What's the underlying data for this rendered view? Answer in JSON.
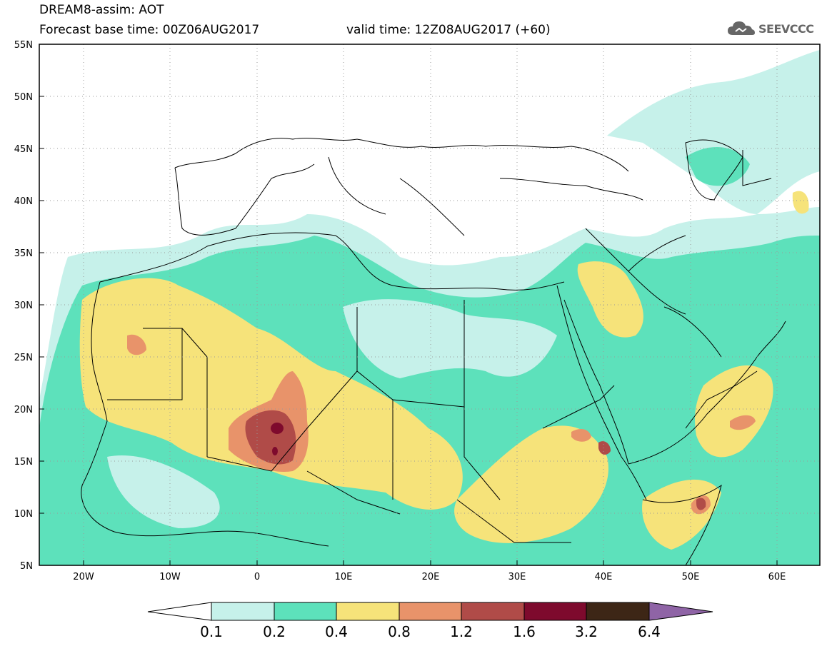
{
  "header": {
    "title_line1": "DREAM8-assim: AOT",
    "base_time": "Forecast base time: 00Z06AUG2017",
    "valid_time": "valid time: 12Z08AUG2017 (+60)"
  },
  "logo": {
    "text": "SEEVCCC",
    "icon": "cloud-icon"
  },
  "map": {
    "lat_labels": [
      "55N",
      "50N",
      "45N",
      "40N",
      "35N",
      "30N",
      "25N",
      "20N",
      "15N",
      "10N",
      "5N"
    ],
    "lon_labels": [
      "20W",
      "10W",
      "0",
      "10E",
      "20E",
      "30E",
      "40E",
      "50E",
      "60E"
    ],
    "lat_range": [
      5,
      55
    ],
    "lon_range": [
      -25,
      65
    ],
    "grid": "dotted"
  },
  "colorbar": {
    "labels": [
      "0.1",
      "0.2",
      "0.4",
      "0.8",
      "1.2",
      "1.6",
      "3.2",
      "6.4"
    ],
    "colors": [
      "#ffffff",
      "#c6f1ea",
      "#5de1bb",
      "#f6e37a",
      "#e8936a",
      "#b04b48",
      "#7e0a2d",
      "#3d2616",
      "#8f64a6"
    ]
  }
}
